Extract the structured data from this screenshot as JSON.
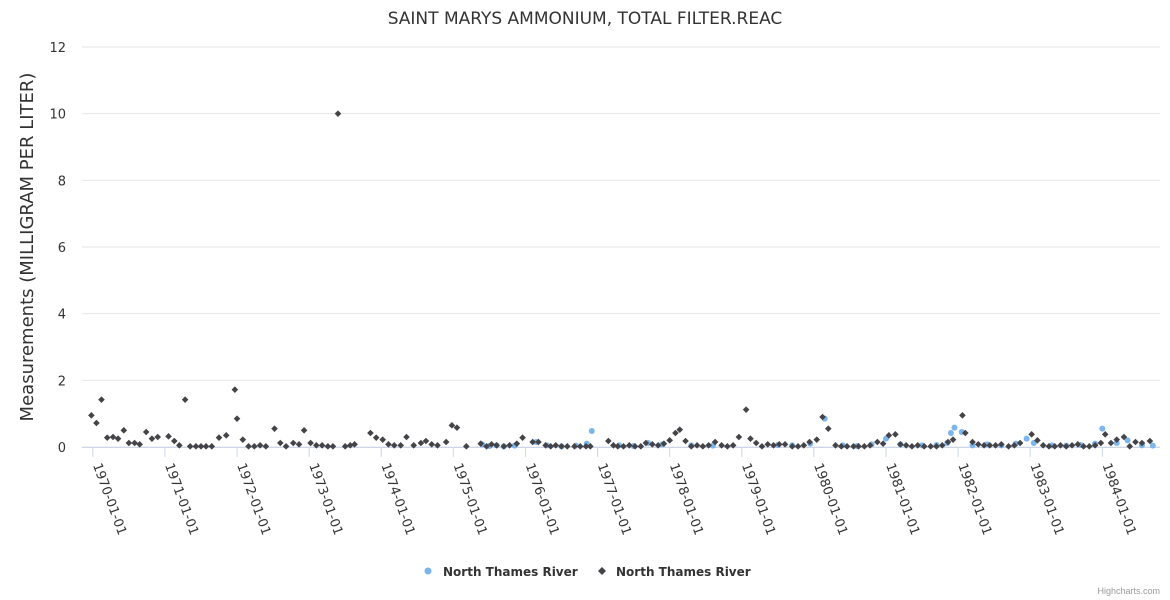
{
  "chart_data": {
    "type": "scatter",
    "title": "SAINT MARYS AMMONIUM, TOTAL FILTER.REAC",
    "ylabel": "Measurements (MILLIGRAM PER LITER)",
    "xlabel": "",
    "ylim": [
      0,
      12
    ],
    "yticks": [
      "0",
      "2",
      "4",
      "6",
      "8",
      "10",
      "12"
    ],
    "xlim": [
      1969.85,
      1984.8
    ],
    "xticks": [
      {
        "x": 1970,
        "label": "1970-01-01"
      },
      {
        "x": 1971,
        "label": "1971-01-01"
      },
      {
        "x": 1972,
        "label": "1972-01-01"
      },
      {
        "x": 1973,
        "label": "1973-01-01"
      },
      {
        "x": 1974,
        "label": "1974-01-01"
      },
      {
        "x": 1975,
        "label": "1975-01-01"
      },
      {
        "x": 1976,
        "label": "1976-01-01"
      },
      {
        "x": 1977,
        "label": "1977-01-01"
      },
      {
        "x": 1978,
        "label": "1978-01-01"
      },
      {
        "x": 1979,
        "label": "1979-01-01"
      },
      {
        "x": 1980,
        "label": "1980-01-01"
      },
      {
        "x": 1981,
        "label": "1981-01-01"
      },
      {
        "x": 1982,
        "label": "1982-01-01"
      },
      {
        "x": 1983,
        "label": "1983-01-01"
      },
      {
        "x": 1984,
        "label": "1984-01-01"
      }
    ],
    "grid": true,
    "legend_position": "bottom-center",
    "series": [
      {
        "name": "North Thames River",
        "marker": "circle",
        "color": "#7cb5ec",
        "points": [
          [
            1975.4,
            0.08
          ],
          [
            1975.5,
            0.03
          ],
          [
            1975.6,
            0.05
          ],
          [
            1975.7,
            0.02
          ],
          [
            1975.85,
            0.04
          ],
          [
            1976.15,
            0.15
          ],
          [
            1976.3,
            0.05
          ],
          [
            1976.5,
            0.02
          ],
          [
            1976.7,
            0.04
          ],
          [
            1976.85,
            0.1
          ],
          [
            1976.92,
            0.48
          ],
          [
            1977.3,
            0.05
          ],
          [
            1977.5,
            0.03
          ],
          [
            1977.7,
            0.12
          ],
          [
            1977.9,
            0.08
          ],
          [
            1978.3,
            0.05
          ],
          [
            1978.6,
            0.04
          ],
          [
            1979.5,
            0.06
          ],
          [
            1979.7,
            0.05
          ],
          [
            1979.95,
            0.1
          ],
          [
            1980.15,
            0.85
          ],
          [
            1980.4,
            0.05
          ],
          [
            1980.6,
            0.03
          ],
          [
            1980.8,
            0.08
          ],
          [
            1981.0,
            0.25
          ],
          [
            1981.2,
            0.08
          ],
          [
            1981.5,
            0.05
          ],
          [
            1981.7,
            0.06
          ],
          [
            1981.85,
            0.12
          ],
          [
            1981.9,
            0.42
          ],
          [
            1981.95,
            0.58
          ],
          [
            1982.05,
            0.45
          ],
          [
            1982.2,
            0.05
          ],
          [
            1982.4,
            0.08
          ],
          [
            1982.6,
            0.05
          ],
          [
            1982.8,
            0.1
          ],
          [
            1982.95,
            0.25
          ],
          [
            1983.05,
            0.12
          ],
          [
            1983.3,
            0.05
          ],
          [
            1983.5,
            0.04
          ],
          [
            1983.7,
            0.06
          ],
          [
            1983.9,
            0.1
          ],
          [
            1984.0,
            0.55
          ],
          [
            1984.2,
            0.12
          ],
          [
            1984.35,
            0.2
          ],
          [
            1984.55,
            0.05
          ],
          [
            1984.7,
            0.04
          ]
        ]
      },
      {
        "name": "North Thames River",
        "marker": "diamond",
        "color": "#434348",
        "points": [
          [
            1969.98,
            0.95
          ],
          [
            1970.05,
            0.72
          ],
          [
            1970.12,
            1.42
          ],
          [
            1970.2,
            0.28
          ],
          [
            1970.28,
            0.3
          ],
          [
            1970.35,
            0.25
          ],
          [
            1970.43,
            0.5
          ],
          [
            1970.5,
            0.12
          ],
          [
            1970.58,
            0.12
          ],
          [
            1970.65,
            0.08
          ],
          [
            1970.74,
            0.45
          ],
          [
            1970.82,
            0.25
          ],
          [
            1970.9,
            0.3
          ],
          [
            1971.05,
            0.32
          ],
          [
            1971.13,
            0.18
          ],
          [
            1971.2,
            0.05
          ],
          [
            1971.28,
            1.42
          ],
          [
            1971.35,
            0.02
          ],
          [
            1971.43,
            0.02
          ],
          [
            1971.5,
            0.02
          ],
          [
            1971.57,
            0.02
          ],
          [
            1971.65,
            0.02
          ],
          [
            1971.75,
            0.28
          ],
          [
            1971.85,
            0.35
          ],
          [
            1971.97,
            1.72
          ],
          [
            1972.0,
            0.85
          ],
          [
            1972.08,
            0.22
          ],
          [
            1972.16,
            0.02
          ],
          [
            1972.24,
            0.02
          ],
          [
            1972.32,
            0.05
          ],
          [
            1972.4,
            0.02
          ],
          [
            1972.52,
            0.55
          ],
          [
            1972.6,
            0.12
          ],
          [
            1972.68,
            0.02
          ],
          [
            1972.78,
            0.12
          ],
          [
            1972.86,
            0.08
          ],
          [
            1972.93,
            0.5
          ],
          [
            1973.02,
            0.12
          ],
          [
            1973.1,
            0.05
          ],
          [
            1973.18,
            0.05
          ],
          [
            1973.26,
            0.02
          ],
          [
            1973.33,
            0.02
          ],
          [
            1973.4,
            10.0
          ],
          [
            1973.5,
            0.02
          ],
          [
            1973.57,
            0.05
          ],
          [
            1973.63,
            0.08
          ],
          [
            1973.85,
            0.42
          ],
          [
            1973.93,
            0.28
          ],
          [
            1974.02,
            0.22
          ],
          [
            1974.1,
            0.08
          ],
          [
            1974.18,
            0.05
          ],
          [
            1974.27,
            0.05
          ],
          [
            1974.35,
            0.3
          ],
          [
            1974.45,
            0.05
          ],
          [
            1974.55,
            0.12
          ],
          [
            1974.62,
            0.18
          ],
          [
            1974.7,
            0.08
          ],
          [
            1974.78,
            0.05
          ],
          [
            1974.9,
            0.15
          ],
          [
            1974.98,
            0.65
          ],
          [
            1975.05,
            0.58
          ],
          [
            1975.18,
            0.02
          ],
          [
            1975.38,
            0.1
          ],
          [
            1975.46,
            0.02
          ],
          [
            1975.53,
            0.08
          ],
          [
            1975.6,
            0.05
          ],
          [
            1975.7,
            0.02
          ],
          [
            1975.78,
            0.05
          ],
          [
            1975.88,
            0.1
          ],
          [
            1975.96,
            0.28
          ],
          [
            1976.1,
            0.15
          ],
          [
            1976.18,
            0.15
          ],
          [
            1976.28,
            0.05
          ],
          [
            1976.35,
            0.02
          ],
          [
            1976.42,
            0.05
          ],
          [
            1976.5,
            0.02
          ],
          [
            1976.58,
            0.02
          ],
          [
            1976.68,
            0.02
          ],
          [
            1976.76,
            0.02
          ],
          [
            1976.84,
            0.02
          ],
          [
            1976.9,
            0.02
          ],
          [
            1977.15,
            0.18
          ],
          [
            1977.22,
            0.05
          ],
          [
            1977.28,
            0.02
          ],
          [
            1977.36,
            0.02
          ],
          [
            1977.44,
            0.05
          ],
          [
            1977.52,
            0.02
          ],
          [
            1977.6,
            0.02
          ],
          [
            1977.67,
            0.12
          ],
          [
            1977.76,
            0.08
          ],
          [
            1977.84,
            0.05
          ],
          [
            1977.92,
            0.1
          ],
          [
            1978.0,
            0.2
          ],
          [
            1978.08,
            0.42
          ],
          [
            1978.14,
            0.52
          ],
          [
            1978.22,
            0.18
          ],
          [
            1978.3,
            0.02
          ],
          [
            1978.38,
            0.05
          ],
          [
            1978.46,
            0.02
          ],
          [
            1978.54,
            0.05
          ],
          [
            1978.63,
            0.15
          ],
          [
            1978.72,
            0.05
          ],
          [
            1978.8,
            0.02
          ],
          [
            1978.88,
            0.05
          ],
          [
            1978.96,
            0.3
          ],
          [
            1979.06,
            1.12
          ],
          [
            1979.12,
            0.25
          ],
          [
            1979.2,
            0.12
          ],
          [
            1979.28,
            0.02
          ],
          [
            1979.36,
            0.08
          ],
          [
            1979.44,
            0.05
          ],
          [
            1979.52,
            0.08
          ],
          [
            1979.6,
            0.08
          ],
          [
            1979.7,
            0.02
          ],
          [
            1979.78,
            0.02
          ],
          [
            1979.86,
            0.05
          ],
          [
            1979.94,
            0.15
          ],
          [
            1980.04,
            0.22
          ],
          [
            1980.12,
            0.9
          ],
          [
            1980.2,
            0.55
          ],
          [
            1980.3,
            0.05
          ],
          [
            1980.38,
            0.02
          ],
          [
            1980.46,
            0.02
          ],
          [
            1980.55,
            0.02
          ],
          [
            1980.62,
            0.02
          ],
          [
            1980.7,
            0.02
          ],
          [
            1980.78,
            0.05
          ],
          [
            1980.88,
            0.15
          ],
          [
            1980.96,
            0.1
          ],
          [
            1981.04,
            0.35
          ],
          [
            1981.13,
            0.38
          ],
          [
            1981.2,
            0.08
          ],
          [
            1981.28,
            0.05
          ],
          [
            1981.36,
            0.02
          ],
          [
            1981.44,
            0.05
          ],
          [
            1981.53,
            0.02
          ],
          [
            1981.62,
            0.02
          ],
          [
            1981.7,
            0.02
          ],
          [
            1981.78,
            0.05
          ],
          [
            1981.86,
            0.15
          ],
          [
            1981.93,
            0.22
          ],
          [
            1982.06,
            0.95
          ],
          [
            1982.1,
            0.42
          ],
          [
            1982.2,
            0.15
          ],
          [
            1982.28,
            0.08
          ],
          [
            1982.36,
            0.05
          ],
          [
            1982.44,
            0.05
          ],
          [
            1982.52,
            0.05
          ],
          [
            1982.6,
            0.08
          ],
          [
            1982.7,
            0.02
          ],
          [
            1982.78,
            0.05
          ],
          [
            1982.86,
            0.12
          ],
          [
            1983.02,
            0.38
          ],
          [
            1983.1,
            0.2
          ],
          [
            1983.18,
            0.05
          ],
          [
            1983.26,
            0.02
          ],
          [
            1983.34,
            0.02
          ],
          [
            1983.42,
            0.05
          ],
          [
            1983.5,
            0.02
          ],
          [
            1983.58,
            0.05
          ],
          [
            1983.66,
            0.08
          ],
          [
            1983.74,
            0.02
          ],
          [
            1983.82,
            0.02
          ],
          [
            1983.9,
            0.05
          ],
          [
            1983.98,
            0.12
          ],
          [
            1984.04,
            0.38
          ],
          [
            1984.12,
            0.12
          ],
          [
            1984.2,
            0.22
          ],
          [
            1984.3,
            0.3
          ],
          [
            1984.38,
            0.02
          ],
          [
            1984.46,
            0.15
          ],
          [
            1984.55,
            0.12
          ],
          [
            1984.66,
            0.18
          ]
        ]
      }
    ]
  },
  "credit": "Highcharts.com"
}
